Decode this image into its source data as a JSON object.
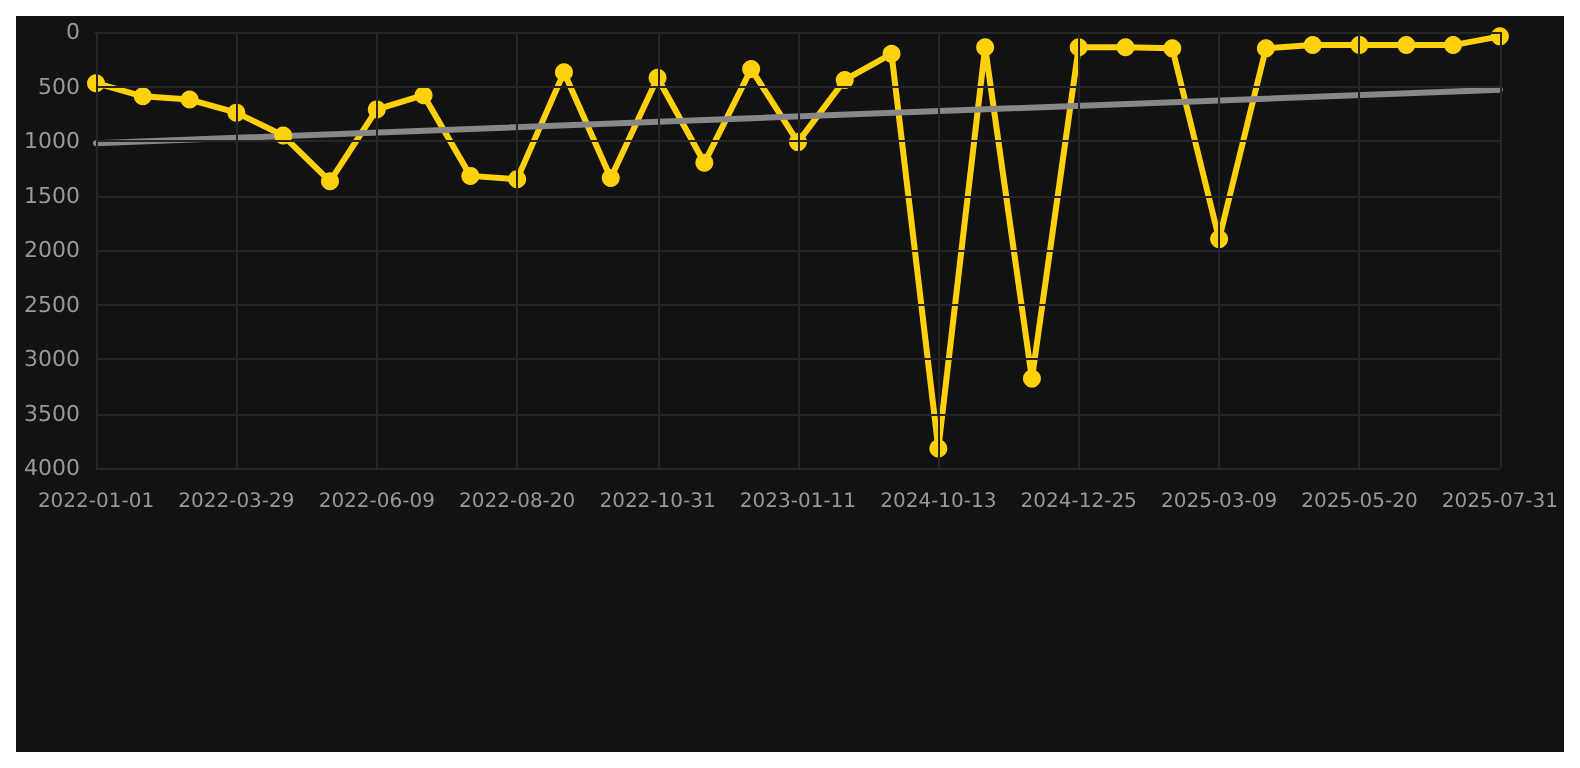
{
  "chart_data": {
    "type": "line",
    "categories": [
      "2022-01-01",
      null,
      null,
      "2022-03-29",
      null,
      null,
      "2022-06-09",
      null,
      null,
      "2022-08-20",
      null,
      null,
      "2022-10-31",
      null,
      null,
      "2023-01-11",
      null,
      null,
      "2024-10-13",
      null,
      null,
      "2024-12-25",
      null,
      null,
      "2025-03-09",
      null,
      null,
      "2025-05-20",
      null,
      null,
      "2025-07-31"
    ],
    "series": [
      {
        "color": "#ffd10a",
        "values": [
          470,
          590,
          620,
          740,
          950,
          1370,
          710,
          580,
          1320,
          1350,
          370,
          1340,
          420,
          1200,
          340,
          1010,
          440,
          200,
          3820,
          140,
          3180,
          140,
          140,
          150,
          1900,
          150,
          120,
          120,
          120,
          120,
          40
        ]
      },
      {
        "type": "line",
        "color": "#888888",
        "marker": "none",
        "values": [
          1020,
          null,
          null,
          null,
          null,
          null,
          null,
          null,
          null,
          null,
          null,
          null,
          null,
          null,
          null,
          null,
          null,
          null,
          null,
          null,
          null,
          null,
          null,
          null,
          null,
          null,
          null,
          null,
          null,
          null,
          530
        ]
      }
    ],
    "ylim": [
      4000,
      0
    ],
    "yticks": [
      0,
      500,
      1000,
      1500,
      2000,
      2500,
      3000,
      3500,
      4000
    ],
    "grid": true,
    "marker": "circle",
    "line_style": "solid"
  }
}
